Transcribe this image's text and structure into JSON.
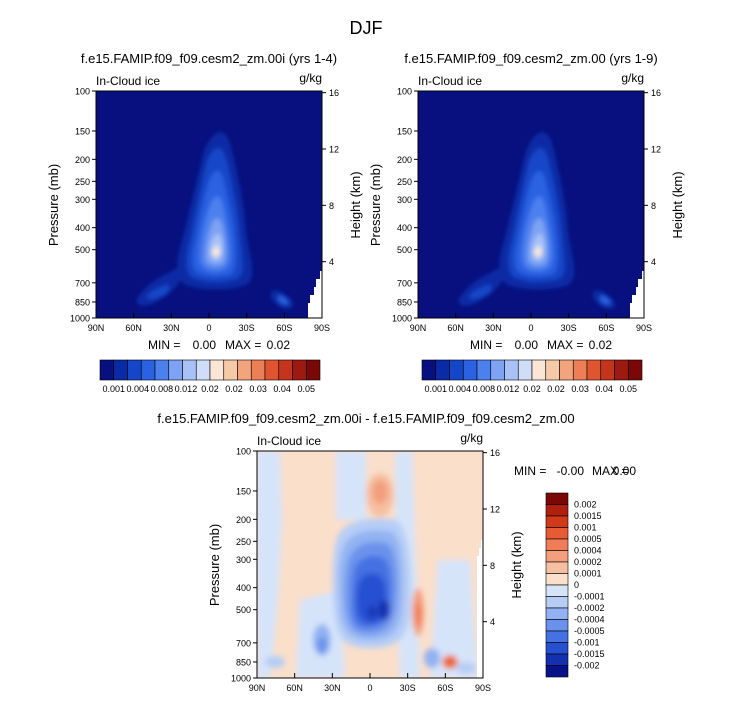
{
  "figure": {
    "title": "DJF"
  },
  "chart_data": [
    {
      "type": "heatmap",
      "title": "f.e15.FAMIP.f09_f09.cesm2_zm.00i (yrs 1-4)",
      "subtitle_left": "In-Cloud ice",
      "units": "g/kg",
      "ylabel": "Pressure (mb)",
      "ylabel_right": "Height (km)",
      "x_ticks": [
        "90N",
        "60N",
        "30N",
        "0",
        "30S",
        "60S",
        "90S"
      ],
      "y_ticks": [
        "100",
        "150",
        "200",
        "250",
        "300",
        "400",
        "500",
        "700",
        "850",
        "1000"
      ],
      "y_right_ticks": [
        "16",
        "12",
        "8",
        "4"
      ],
      "ylim": [
        1000,
        100
      ],
      "stats": {
        "min_label": "MIN =",
        "min": "0.00",
        "max_label": "MAX =",
        "max": "0.02"
      }
    },
    {
      "type": "heatmap",
      "title": "f.e15.FAMIP.f09_f09.cesm2_zm.00 (yrs 1-9)",
      "subtitle_left": "In-Cloud ice",
      "units": "g/kg",
      "ylabel": "Pressure (mb)",
      "ylabel_right": "Height (km)",
      "x_ticks": [
        "90N",
        "60N",
        "30N",
        "0",
        "30S",
        "60S",
        "90S"
      ],
      "y_ticks": [
        "100",
        "150",
        "200",
        "250",
        "300",
        "400",
        "500",
        "700",
        "850",
        "1000"
      ],
      "y_right_ticks": [
        "16",
        "12",
        "8",
        "4"
      ],
      "ylim": [
        1000,
        100
      ],
      "stats": {
        "min_label": "MIN =",
        "min": "0.00",
        "max_label": "MAX =",
        "max": "0.02"
      }
    },
    {
      "type": "heatmap",
      "title": "f.e15.FAMIP.f09_f09.cesm2_zm.00i - f.e15.FAMIP.f09_f09.cesm2_zm.00",
      "subtitle_left": "In-Cloud ice",
      "units": "g/kg",
      "ylabel": "Pressure (mb)",
      "ylabel_right": "Height (km)",
      "x_ticks": [
        "90N",
        "60N",
        "30N",
        "0",
        "30S",
        "60S",
        "90S"
      ],
      "y_ticks": [
        "100",
        "150",
        "200",
        "250",
        "300",
        "400",
        "500",
        "700",
        "850",
        "1000"
      ],
      "y_right_ticks": [
        "16",
        "12",
        "8",
        "4"
      ],
      "ylim": [
        1000,
        100
      ],
      "stats": {
        "min_label": "MIN =",
        "min": "-0.00",
        "max_label": "MAX =",
        "max": "0.00"
      }
    }
  ],
  "colorbar_top": {
    "labels": [
      "0.001",
      "0.004",
      "0.008",
      "0.012",
      "0.02",
      "0.02",
      "0.03",
      "0.04",
      "0.05"
    ],
    "colors": [
      "#07107e",
      "#0a2ba6",
      "#1346c8",
      "#2a62e2",
      "#4d80ef",
      "#7ea3f4",
      "#a8c2f7",
      "#cfddf9",
      "#fbe6d6",
      "#f6c9a9",
      "#f2a57c",
      "#ec7f55",
      "#e0552f",
      "#c4351c",
      "#9e1a10",
      "#7a0806"
    ]
  },
  "colorbar_diff": {
    "labels": [
      "0.002",
      "0.0015",
      "0.001",
      "0.0005",
      "0.0004",
      "0.0002",
      "0.0001",
      "0",
      "-0.0001",
      "-0.0002",
      "-0.0004",
      "-0.0005",
      "-0.001",
      "-0.0015",
      "-0.002"
    ],
    "colors": [
      "#7a0806",
      "#b0200f",
      "#d2381a",
      "#e85a33",
      "#f07d57",
      "#f39f7d",
      "#f6bfa2",
      "#fadfcb",
      "#d6e4fa",
      "#b6cdf6",
      "#92b2f2",
      "#6a92ec",
      "#4471e3",
      "#2550d2",
      "#1231b1",
      "#06128a"
    ]
  }
}
